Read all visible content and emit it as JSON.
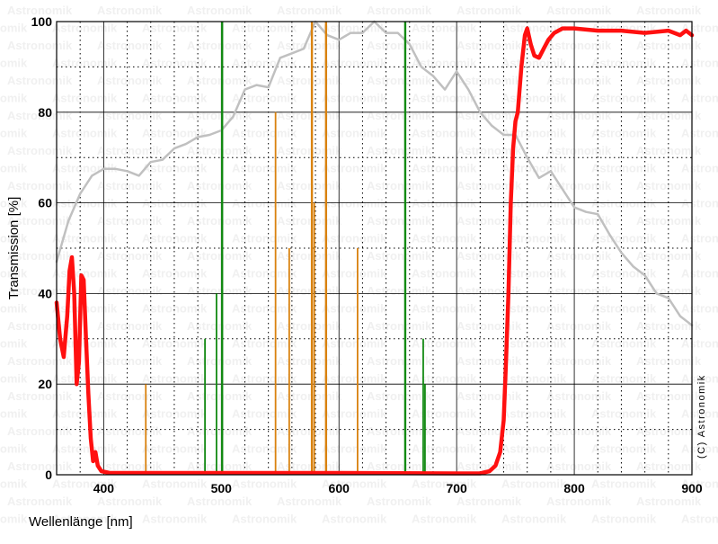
{
  "chart_data": {
    "type": "line",
    "xlabel": "Wellenlänge [nm]",
    "ylabel": "Transmission [%]",
    "xlim": [
      360,
      900
    ],
    "ylim": [
      0,
      100
    ],
    "x_ticks": [
      400,
      500,
      600,
      700,
      800,
      900
    ],
    "y_ticks": [
      0,
      20,
      40,
      60,
      80,
      100
    ],
    "x_minor_step": 20,
    "y_minor_step": 10,
    "grid": true,
    "watermark": "Astronomik",
    "copyright": "(C) Astronomik",
    "colors": {
      "filter": "#ff1010",
      "sensitivity": "#c0c0c0",
      "emission_green": "#138a13",
      "emission_orange": "#d9820f",
      "grid_major": "#000000",
      "grid_minor": "#000000",
      "watermark": "#f0f0f0"
    },
    "series": [
      {
        "color": "#ff1010",
        "points": [
          [
            360,
            38
          ],
          [
            363,
            30
          ],
          [
            366,
            26
          ],
          [
            369,
            35
          ],
          [
            371,
            45
          ],
          [
            373,
            48
          ],
          [
            375,
            40
          ],
          [
            377,
            20
          ],
          [
            379,
            25
          ],
          [
            381,
            44
          ],
          [
            383,
            43
          ],
          [
            385,
            30
          ],
          [
            387,
            18
          ],
          [
            389,
            8
          ],
          [
            391,
            3
          ],
          [
            393,
            5
          ],
          [
            395,
            2
          ],
          [
            398,
            0.8
          ],
          [
            405,
            0.4
          ],
          [
            450,
            0.4
          ],
          [
            500,
            0.4
          ],
          [
            600,
            0.4
          ],
          [
            700,
            0.3
          ],
          [
            720,
            0.3
          ],
          [
            728,
            0.8
          ],
          [
            733,
            2
          ],
          [
            737,
            5
          ],
          [
            740,
            12
          ],
          [
            742,
            25
          ],
          [
            744,
            40
          ],
          [
            746,
            60
          ],
          [
            748,
            72
          ],
          [
            750,
            78
          ],
          [
            752,
            80
          ],
          [
            755,
            90
          ],
          [
            758,
            97
          ],
          [
            760,
            98.5
          ],
          [
            763,
            95
          ],
          [
            766,
            92.5
          ],
          [
            770,
            92
          ],
          [
            774,
            94
          ],
          [
            778,
            96
          ],
          [
            783,
            97.5
          ],
          [
            790,
            98.5
          ],
          [
            800,
            98.5
          ],
          [
            820,
            98
          ],
          [
            840,
            98
          ],
          [
            860,
            97.5
          ],
          [
            880,
            98
          ],
          [
            890,
            97
          ],
          [
            895,
            98
          ],
          [
            900,
            97
          ]
        ]
      },
      {
        "color": "#c0c0c0",
        "points": [
          [
            360,
            47
          ],
          [
            370,
            56
          ],
          [
            380,
            62
          ],
          [
            390,
            66
          ],
          [
            400,
            67.5
          ],
          [
            410,
            67.5
          ],
          [
            420,
            67
          ],
          [
            430,
            66
          ],
          [
            440,
            69
          ],
          [
            450,
            69.5
          ],
          [
            460,
            72
          ],
          [
            470,
            73
          ],
          [
            480,
            74.5
          ],
          [
            490,
            75
          ],
          [
            500,
            76
          ],
          [
            510,
            79
          ],
          [
            520,
            85
          ],
          [
            530,
            86
          ],
          [
            540,
            85.5
          ],
          [
            550,
            92
          ],
          [
            560,
            93
          ],
          [
            570,
            94
          ],
          [
            580,
            100
          ],
          [
            590,
            97
          ],
          [
            600,
            96
          ],
          [
            610,
            97.5
          ],
          [
            620,
            97.5
          ],
          [
            630,
            100
          ],
          [
            640,
            97.5
          ],
          [
            650,
            97.5
          ],
          [
            660,
            95
          ],
          [
            670,
            90
          ],
          [
            680,
            88
          ],
          [
            690,
            85
          ],
          [
            700,
            89
          ],
          [
            710,
            85
          ],
          [
            720,
            80
          ],
          [
            730,
            77
          ],
          [
            740,
            75
          ],
          [
            750,
            75
          ],
          [
            760,
            70
          ],
          [
            770,
            65.5
          ],
          [
            780,
            67
          ],
          [
            790,
            63
          ],
          [
            800,
            59
          ],
          [
            810,
            58
          ],
          [
            820,
            57.5
          ],
          [
            830,
            53
          ],
          [
            840,
            49
          ],
          [
            850,
            46
          ],
          [
            860,
            44
          ],
          [
            870,
            40
          ],
          [
            880,
            39
          ],
          [
            890,
            35
          ],
          [
            900,
            33
          ]
        ]
      }
    ],
    "emission_lines": [
      {
        "x": 435.8,
        "y": 20,
        "color": "#d9820f"
      },
      {
        "x": 486.1,
        "y": 30,
        "color": "#138a13"
      },
      {
        "x": 495.9,
        "y": 40,
        "color": "#138a13"
      },
      {
        "x": 500.7,
        "y": 100,
        "color": "#138a13"
      },
      {
        "x": 546.1,
        "y": 80,
        "color": "#d9820f"
      },
      {
        "x": 557.7,
        "y": 50,
        "color": "#d9820f"
      },
      {
        "x": 577.0,
        "y": 100,
        "color": "#d9820f"
      },
      {
        "x": 579.0,
        "y": 60,
        "color": "#d9820f"
      },
      {
        "x": 589.0,
        "y": 100,
        "color": "#d9820f"
      },
      {
        "x": 615.8,
        "y": 50,
        "color": "#d9820f"
      },
      {
        "x": 656.3,
        "y": 100,
        "color": "#138a13"
      },
      {
        "x": 671.6,
        "y": 30,
        "color": "#138a13"
      },
      {
        "x": 673.1,
        "y": 20,
        "color": "#138a13"
      }
    ]
  }
}
